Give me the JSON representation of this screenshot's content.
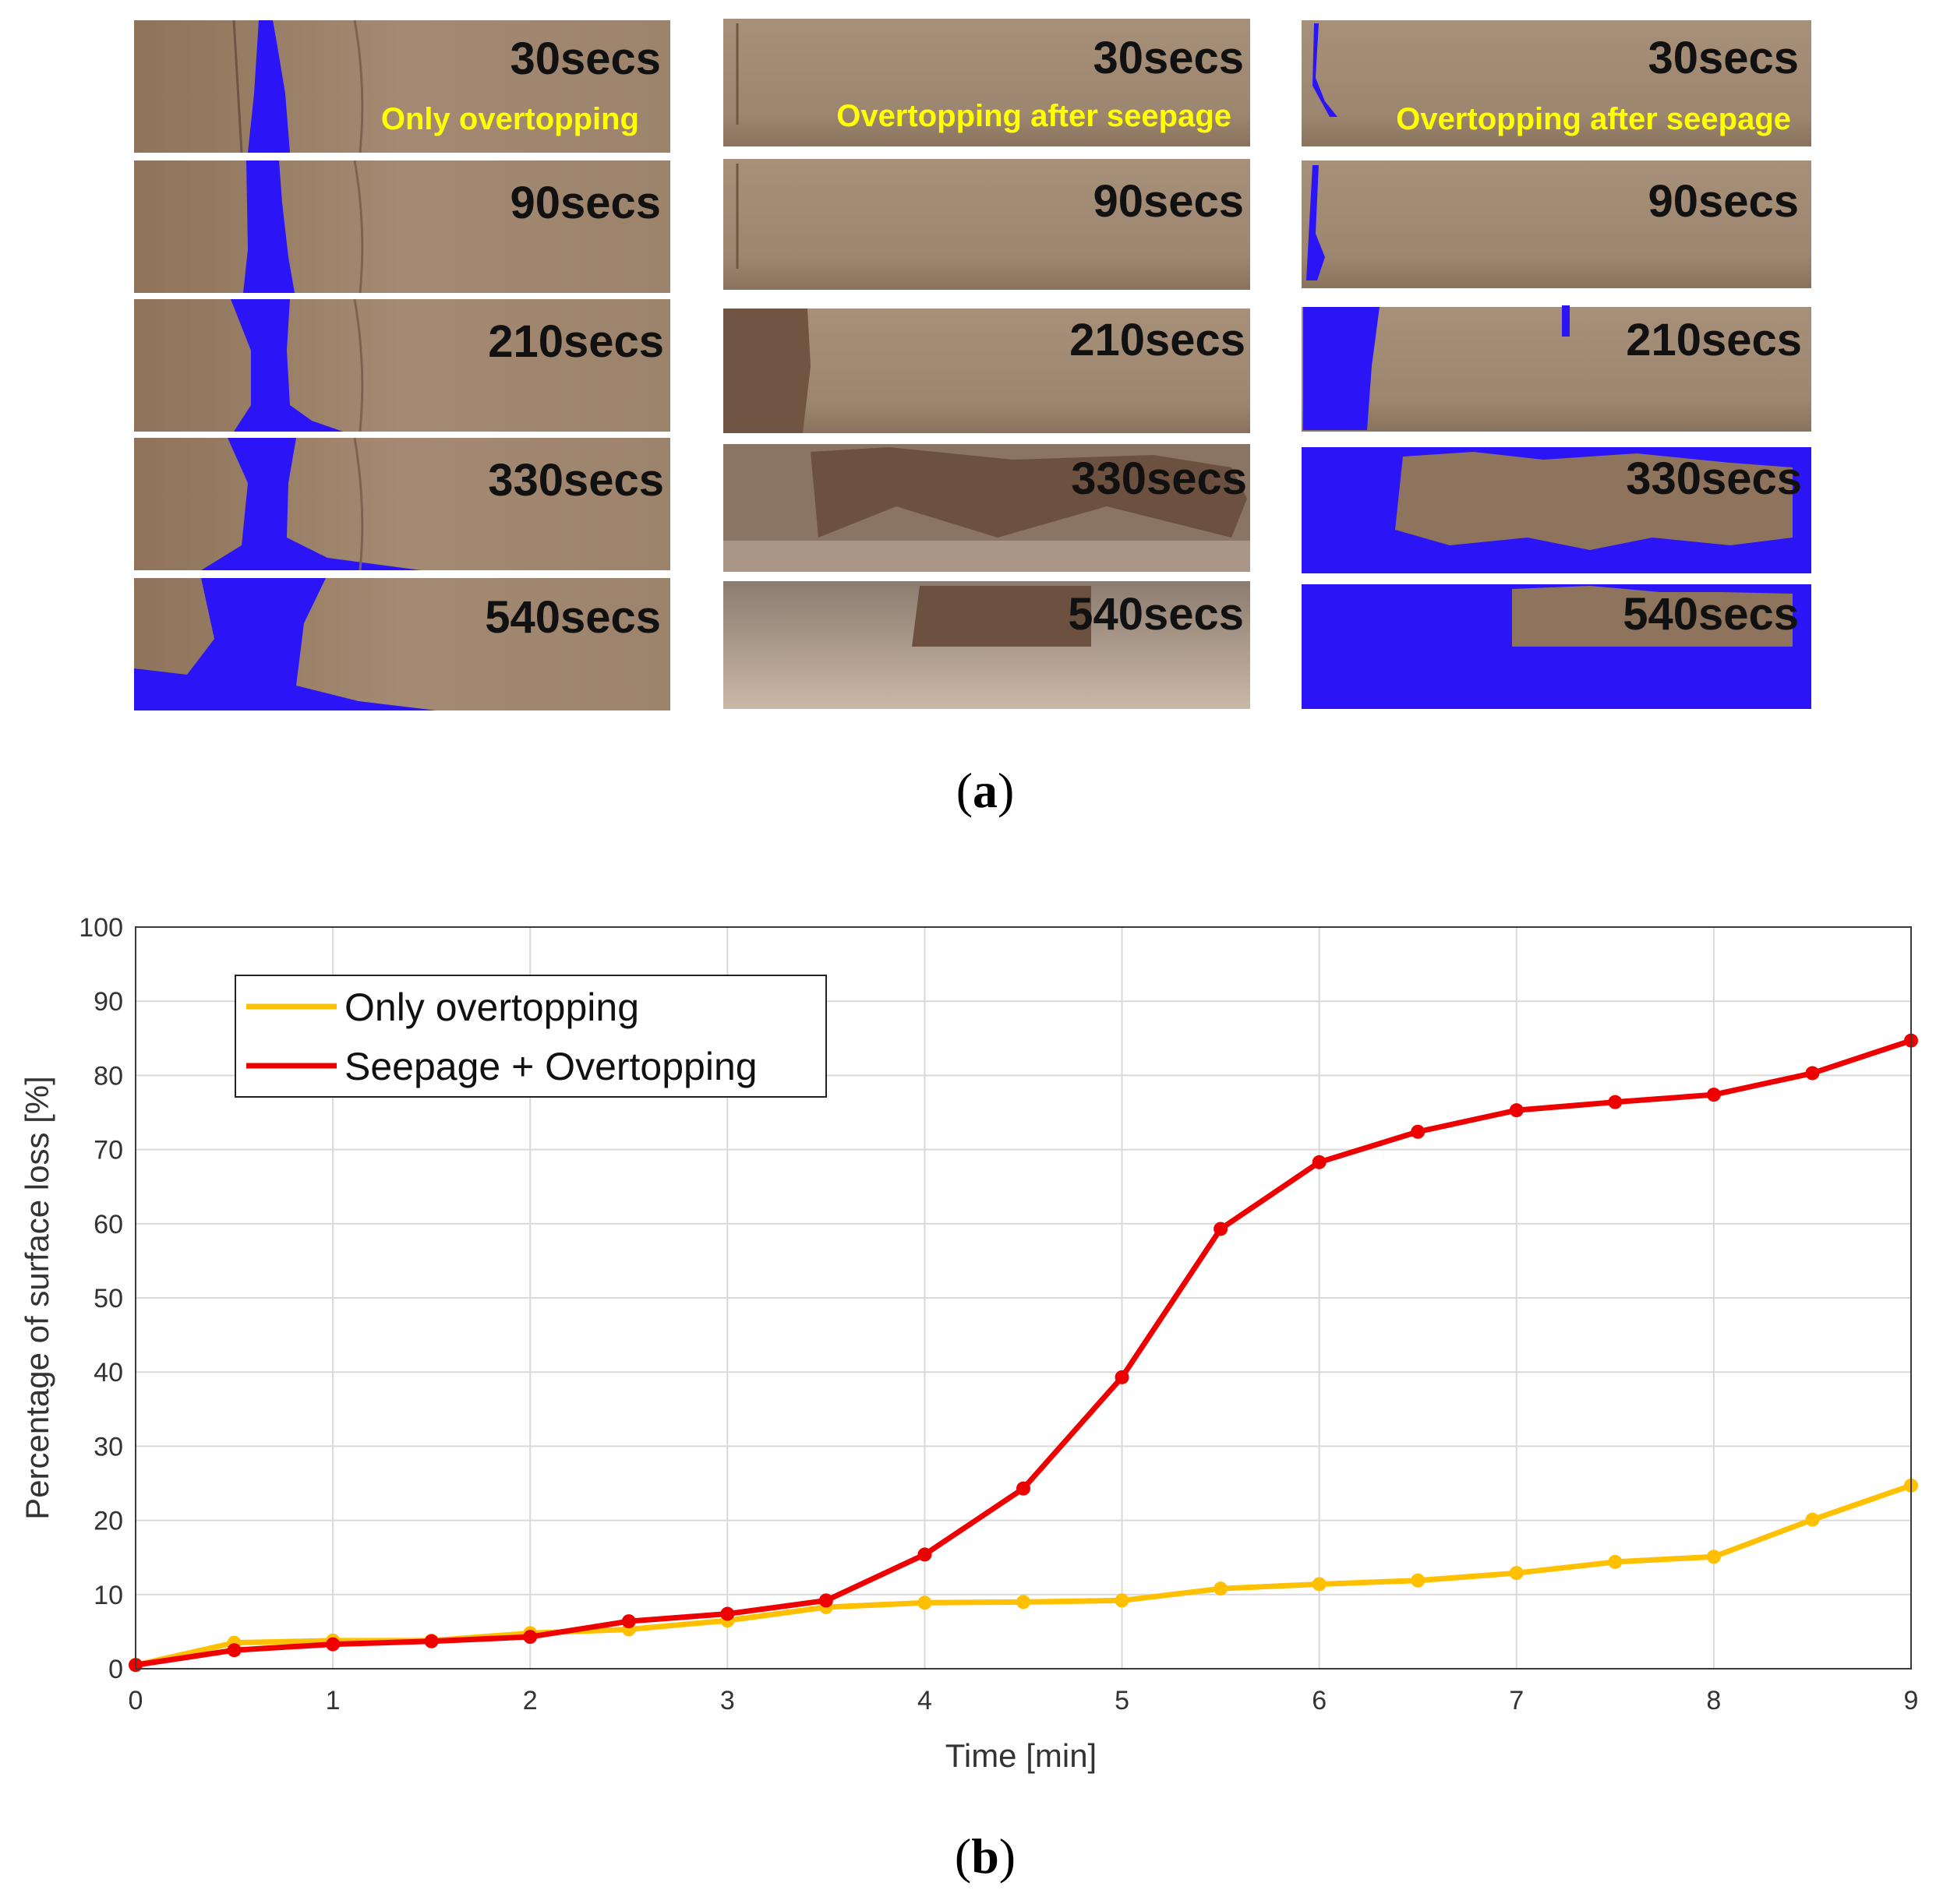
{
  "panel_a": {
    "caption": "(a)",
    "caption_letter": "a",
    "columns": [
      {
        "caption": "Only overtopping",
        "tiles": [
          "30secs",
          "90secs",
          "210secs",
          "330secs",
          "540secs"
        ]
      },
      {
        "caption": "Overtopping after seepage",
        "tiles": [
          "30secs",
          "90secs",
          "210secs",
          "330secs",
          "540secs"
        ]
      },
      {
        "caption": "Overtopping after seepage",
        "tiles": [
          "30secs",
          "90secs",
          "210secs",
          "330secs",
          "540secs"
        ]
      }
    ],
    "colors": {
      "soil": "#9a7f66",
      "soil_light": "#a68c74",
      "soil_dark": "#7a5e48",
      "water_overlay": "#2b14f5",
      "caption_text": "#ffff00",
      "label_text": "#111111",
      "muddy_flow": "#b8a898"
    }
  },
  "panel_b": {
    "caption": "(b)",
    "caption_letter": "b"
  },
  "chart_data": {
    "type": "line",
    "title": "",
    "xlabel": "Time [min]",
    "ylabel": "Percentage of surface loss [%]",
    "xlim": [
      0,
      9
    ],
    "ylim": [
      0,
      100
    ],
    "xticks": [
      0,
      1,
      2,
      3,
      4,
      5,
      6,
      7,
      8,
      9
    ],
    "yticks": [
      0,
      10,
      20,
      30,
      40,
      50,
      60,
      70,
      80,
      90,
      100
    ],
    "grid": true,
    "legend_position": "top-left",
    "x": [
      0,
      0.5,
      1,
      1.5,
      2,
      2.5,
      3,
      3.5,
      4,
      4.5,
      5,
      5.5,
      6,
      6.5,
      7,
      7.5,
      8,
      8.5,
      9
    ],
    "series": [
      {
        "name": "Only overtopping",
        "color": "#ffc000",
        "values": [
          0.5,
          3.5,
          3.8,
          3.8,
          4.8,
          5.3,
          6.5,
          8.3,
          8.9,
          9.0,
          9.2,
          10.8,
          11.4,
          11.9,
          12.9,
          14.4,
          15.1,
          20.1,
          24.7
        ]
      },
      {
        "name": "Seepage + Overtopping",
        "color": "#ee0000",
        "values": [
          0.5,
          2.5,
          3.3,
          3.7,
          4.3,
          6.4,
          7.4,
          9.2,
          15.4,
          24.3,
          39.3,
          59.3,
          68.3,
          72.4,
          75.3,
          76.4,
          77.4,
          80.3,
          84.7
        ]
      }
    ]
  }
}
